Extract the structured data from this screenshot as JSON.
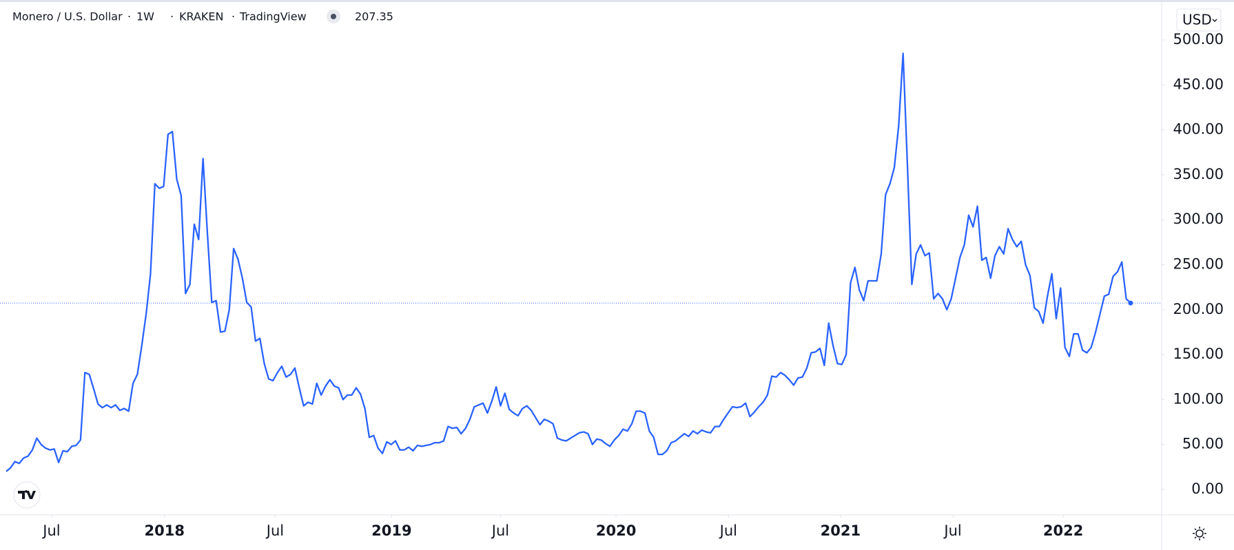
{
  "chart_data": {
    "type": "line",
    "title": "Monero / U.S. Dollar",
    "interval": "1W",
    "exchange": "KRAKEN",
    "source": "TradingView",
    "currency": "USD",
    "color": "#2962ff",
    "values": [
      20,
      24,
      31,
      29,
      35,
      37,
      44,
      57,
      50,
      46,
      44,
      45,
      30,
      43,
      42,
      48,
      49,
      55,
      130,
      128,
      112,
      95,
      91,
      94,
      91,
      94,
      88,
      90,
      87,
      118,
      128,
      160,
      195,
      240,
      340,
      335,
      337,
      395,
      398,
      345,
      327,
      218,
      228,
      295,
      278,
      368,
      285,
      208,
      210,
      175,
      176,
      200,
      268,
      256,
      235,
      208,
      203,
      165,
      168,
      140,
      123,
      121,
      130,
      137,
      125,
      128,
      135,
      113,
      93,
      97,
      95,
      118,
      105,
      115,
      122,
      115,
      113,
      100,
      105,
      105,
      113,
      106,
      90,
      58,
      60,
      46,
      40,
      53,
      50,
      54,
      44,
      44,
      47,
      43,
      49,
      48,
      49,
      50,
      52,
      52,
      54,
      70,
      68,
      69,
      62,
      68,
      78,
      92,
      94,
      96,
      85,
      98,
      114,
      93,
      107,
      89,
      85,
      82,
      90,
      93,
      88,
      80,
      72,
      78,
      76,
      73,
      57,
      55,
      54,
      57,
      60,
      63,
      64,
      62,
      50,
      56,
      55,
      51,
      48,
      55,
      60,
      67,
      65,
      73,
      87,
      87,
      85,
      65,
      58,
      39,
      39,
      43,
      52,
      54,
      58,
      62,
      59,
      65,
      62,
      66,
      64,
      63,
      70,
      70,
      78,
      85,
      92,
      91,
      92,
      96,
      81,
      86,
      92,
      97,
      105,
      126,
      125,
      130,
      127,
      122,
      116,
      124,
      125,
      135,
      152,
      153,
      157,
      138,
      185,
      160,
      140,
      139,
      150,
      230,
      247,
      222,
      210,
      232,
      232,
      232,
      262,
      328,
      340,
      358,
      405,
      485,
      360,
      228,
      262,
      272,
      260,
      263,
      212,
      218,
      212,
      200,
      212,
      235,
      258,
      272,
      305,
      292,
      315,
      255,
      258,
      235,
      260,
      270,
      262,
      290,
      278,
      270,
      276,
      250,
      238,
      202,
      198,
      185,
      215,
      240,
      190,
      224,
      158,
      148,
      173,
      173,
      155,
      152,
      158,
      175,
      195,
      215,
      217,
      237,
      242,
      253,
      212,
      207.35
    ],
    "xlim": [
      -1.4,
      264.1
    ],
    "xticks": [
      {
        "value": 10.4,
        "label": "Jul"
      },
      {
        "value": 36.2,
        "label": "2018"
      },
      {
        "value": 61.5,
        "label": "Jul"
      },
      {
        "value": 88.1,
        "label": "2019"
      },
      {
        "value": 113,
        "label": "Jul"
      },
      {
        "value": 139.4,
        "label": "2020"
      },
      {
        "value": 165.1,
        "label": "Jul"
      },
      {
        "value": 190.7,
        "label": "2021"
      },
      {
        "value": 216.4,
        "label": "Jul"
      },
      {
        "value": 241.6,
        "label": "2022"
      }
    ],
    "ylim": [
      -28.3,
      544.4
    ],
    "yticks": [
      {
        "value": 0,
        "label": "0.00"
      },
      {
        "value": 50,
        "label": "50.00"
      },
      {
        "value": 100,
        "label": "100.00"
      },
      {
        "value": 150,
        "label": "150.00"
      },
      {
        "value": 200,
        "label": "200.00"
      },
      {
        "value": 250,
        "label": "250.00"
      },
      {
        "value": 300,
        "label": "300.00"
      },
      {
        "value": 350,
        "label": "350.00"
      },
      {
        "value": 400,
        "label": "400.00"
      },
      {
        "value": 450,
        "label": "450.00"
      },
      {
        "value": 500,
        "label": "500.00"
      }
    ]
  }
}
